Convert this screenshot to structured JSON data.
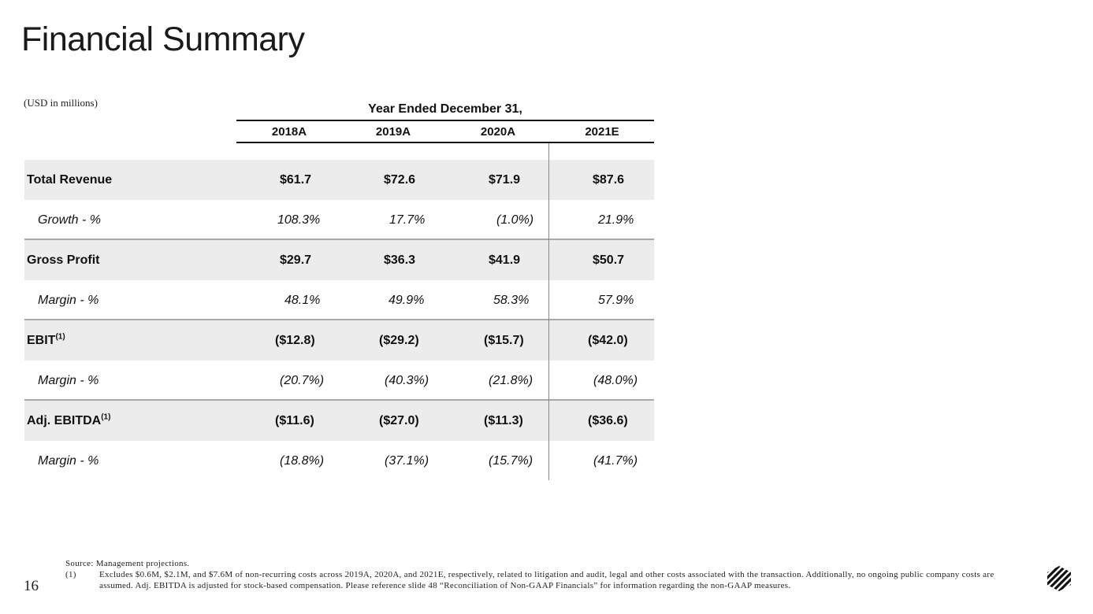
{
  "title": "Financial Summary",
  "units": "(USD in millions)",
  "period_header": "Year Ended December 31,",
  "columns": [
    "2018A",
    "2019A",
    "2020A",
    "2021E"
  ],
  "rows": [
    {
      "label": "Total Revenue",
      "sup": "",
      "values": [
        "$61.7",
        "$72.6",
        "$71.9",
        "$87.6"
      ]
    },
    {
      "label": "Growth - %",
      "sup": "",
      "values": [
        "108.3%",
        "17.7%",
        "(1.0%)",
        "21.9%"
      ]
    },
    {
      "label": "Gross Profit",
      "sup": "",
      "values": [
        "$29.7",
        "$36.3",
        "$41.9",
        "$50.7"
      ]
    },
    {
      "label": "Margin - %",
      "sup": "",
      "values": [
        "48.1%",
        "49.9%",
        "58.3%",
        "57.9%"
      ]
    },
    {
      "label": "EBIT",
      "sup": "(1)",
      "values": [
        "($12.8)",
        "($29.2)",
        "($15.7)",
        "($42.0)"
      ]
    },
    {
      "label": "Margin - %",
      "sup": "",
      "values": [
        "(20.7%)",
        "(40.3%)",
        "(21.8%)",
        "(48.0%)"
      ]
    },
    {
      "label": "Adj. EBITDA",
      "sup": "(1)",
      "values": [
        "($11.6)",
        "($27.0)",
        "($11.3)",
        "($36.6)"
      ]
    },
    {
      "label": "Margin - %",
      "sup": "",
      "values": [
        "(18.8%)",
        "(37.1%)",
        "(15.7%)",
        "(41.7%)"
      ]
    }
  ],
  "footer": {
    "source": "Source: Management projections.",
    "note_number": "(1)",
    "note_text": "Excludes $0.6M, $2.1M, and $7.6M of non-recurring costs across 2019A, 2020A, and 2021E, respectively, related to litigation and audit, legal and other costs associated with the transaction. Additionally, no ongoing public company costs are assumed. Adj. EBITDA is adjusted for stock-based compensation. Please reference slide 48 “Reconciliation of Non-GAAP Financials” for information regarding the non-GAAP measures."
  },
  "page_number": "16",
  "logo_icon": "striped-cube-logo-icon"
}
